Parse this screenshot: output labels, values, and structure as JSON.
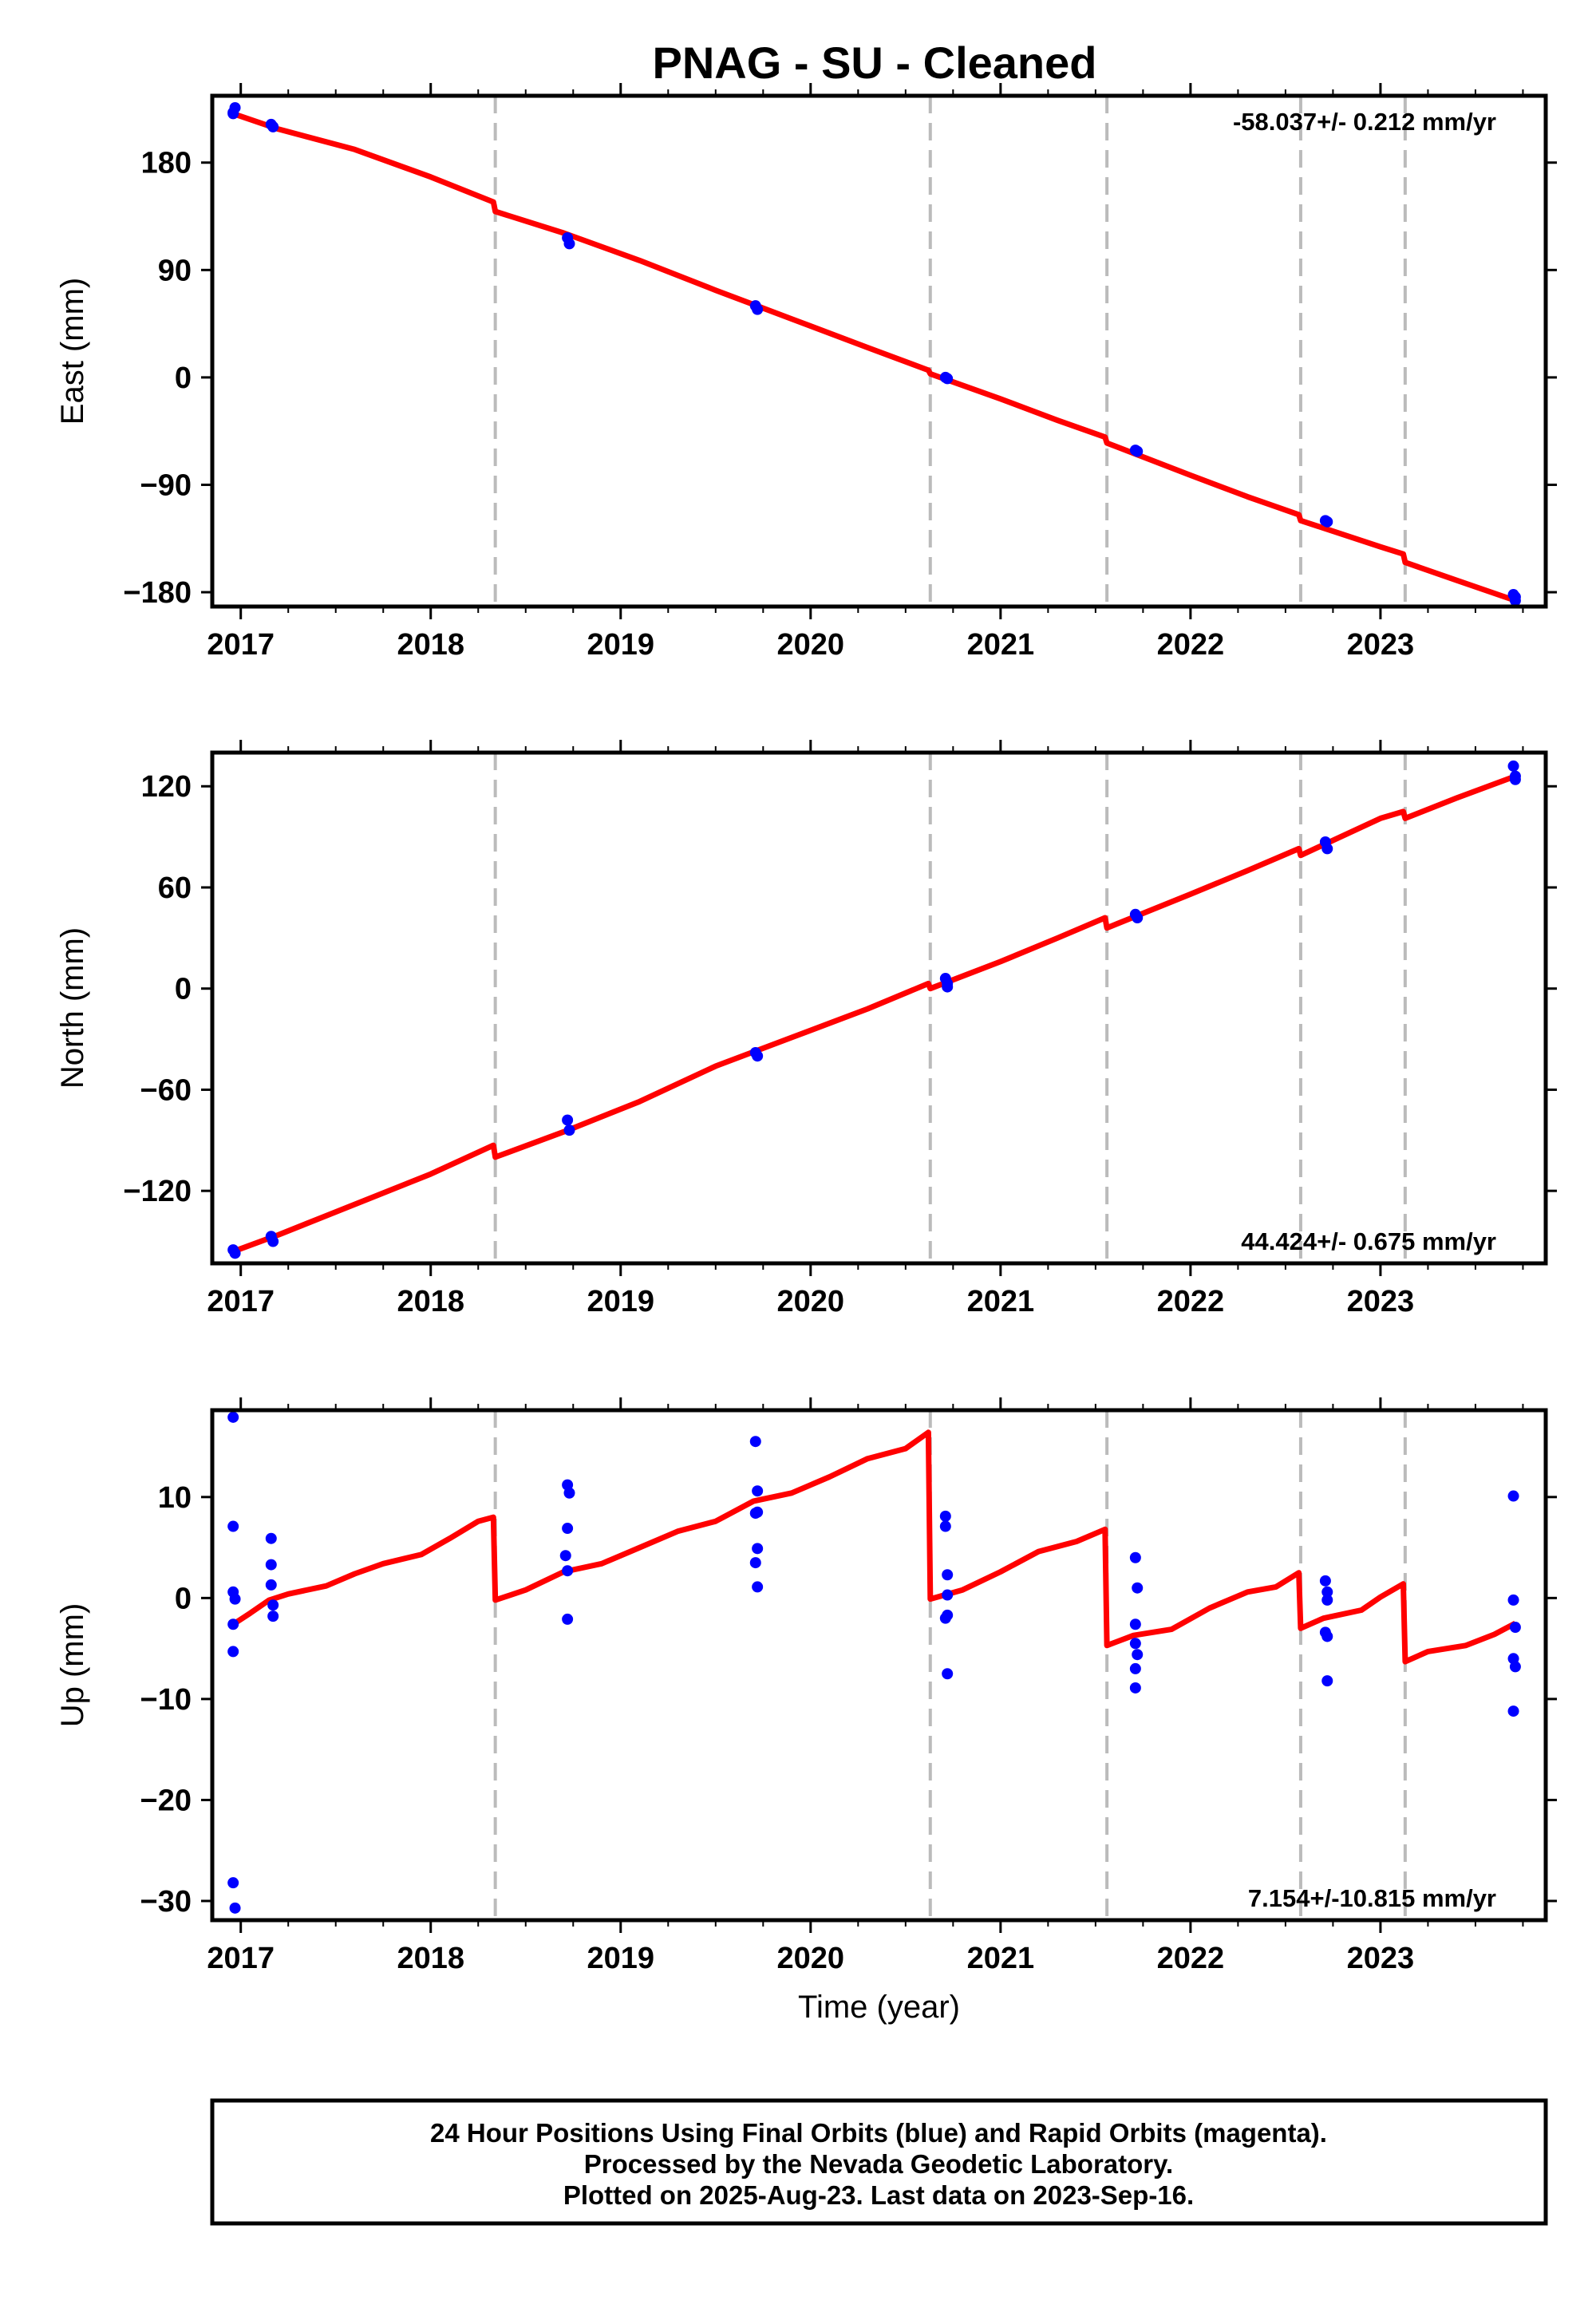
{
  "title": "PNAG  - SU - Cleaned",
  "footer": {
    "line1": "24 Hour Positions Using Final Orbits (blue) and Rapid Orbits (magenta).",
    "line2": "Processed by the Nevada Geodetic Laboratory.",
    "line3": "Plotted on 2025-Aug-23. Last data on 2023-Sep-16."
  },
  "colors": {
    "points": "#0000ff",
    "model": "#ff0000",
    "steps": "#bbbbbb",
    "frame": "#000000"
  },
  "chart_data": [
    {
      "type": "scatter",
      "ylabel": "East (mm)",
      "xlabel": "",
      "rate_text": "-58.037+/- 0.212 mm/yr",
      "xlim": [
        2016.85,
        2023.87
      ],
      "ylim": [
        -192,
        236
      ],
      "x_ticks": [
        2017,
        2018,
        2019,
        2020,
        2021,
        2022,
        2023
      ],
      "y_ticks": [
        180,
        90,
        0,
        -90,
        -180
      ],
      "y_tick_labels": [
        "180",
        "90",
        "0",
        "−90",
        "−180"
      ],
      "step_epochs": [
        2018.34,
        2020.63,
        2021.56,
        2022.58,
        2023.13
      ],
      "series": [
        {
          "kind": "points",
          "points": [
            [
              2016.96,
              222
            ],
            [
              2016.97,
              226
            ],
            [
              2016.96,
              221
            ],
            [
              2017.16,
              212
            ],
            [
              2017.17,
              210
            ],
            [
              2018.72,
              117
            ],
            [
              2018.73,
              112
            ],
            [
              2019.71,
              60
            ],
            [
              2019.72,
              57
            ],
            [
              2020.71,
              0
            ],
            [
              2020.72,
              -1
            ],
            [
              2021.71,
              -61
            ],
            [
              2021.72,
              -62
            ],
            [
              2022.71,
              -120
            ],
            [
              2022.72,
              -121
            ],
            [
              2023.7,
              -182
            ],
            [
              2023.71,
              -187
            ],
            [
              2023.71,
              -184
            ]
          ]
        },
        {
          "kind": "line",
          "points": [
            [
              2016.96,
              221
            ],
            [
              2017.2,
              208
            ],
            [
              2017.6,
              191
            ],
            [
              2018.0,
              168
            ],
            [
              2018.33,
              147
            ],
            [
              2018.34,
              139
            ],
            [
              2018.7,
              121
            ],
            [
              2019.1,
              98
            ],
            [
              2019.5,
              73
            ],
            [
              2019.9,
              49
            ],
            [
              2020.3,
              25
            ],
            [
              2020.62,
              6
            ],
            [
              2020.63,
              3
            ],
            [
              2021.0,
              -18
            ],
            [
              2021.3,
              -36
            ],
            [
              2021.55,
              -50
            ],
            [
              2021.56,
              -55
            ],
            [
              2022.0,
              -82
            ],
            [
              2022.3,
              -100
            ],
            [
              2022.57,
              -115
            ],
            [
              2022.58,
              -120
            ],
            [
              2023.0,
              -142
            ],
            [
              2023.12,
              -148
            ],
            [
              2023.13,
              -155
            ],
            [
              2023.4,
              -170
            ],
            [
              2023.71,
              -187
            ]
          ]
        }
      ]
    },
    {
      "type": "scatter",
      "ylabel": "North (mm)",
      "xlabel": "",
      "rate_text": "44.424+/- 0.675 mm/yr",
      "xlim": [
        2016.85,
        2023.87
      ],
      "ylim": [
        -163,
        140
      ],
      "x_ticks": [
        2017,
        2018,
        2019,
        2020,
        2021,
        2022,
        2023
      ],
      "y_ticks": [
        120,
        60,
        0,
        -60,
        -120
      ],
      "y_tick_labels": [
        "120",
        "60",
        "0",
        "−60",
        "−120"
      ],
      "step_epochs": [
        2018.34,
        2020.63,
        2021.56,
        2022.58,
        2023.13
      ],
      "series": [
        {
          "kind": "points",
          "points": [
            [
              2016.96,
              -155
            ],
            [
              2016.97,
              -157
            ],
            [
              2017.16,
              -147
            ],
            [
              2017.17,
              -150
            ],
            [
              2018.72,
              -78
            ],
            [
              2018.73,
              -84
            ],
            [
              2019.71,
              -38
            ],
            [
              2019.72,
              -40
            ],
            [
              2020.71,
              6
            ],
            [
              2020.72,
              3
            ],
            [
              2020.72,
              1
            ],
            [
              2021.71,
              44
            ],
            [
              2021.72,
              42
            ],
            [
              2022.71,
              87
            ],
            [
              2022.72,
              83
            ],
            [
              2023.7,
              132
            ],
            [
              2023.71,
              126
            ],
            [
              2023.71,
              124
            ]
          ]
        },
        {
          "kind": "line",
          "points": [
            [
              2016.96,
              -156
            ],
            [
              2017.2,
              -146
            ],
            [
              2017.6,
              -128
            ],
            [
              2018.0,
              -110
            ],
            [
              2018.33,
              -93
            ],
            [
              2018.34,
              -100
            ],
            [
              2018.7,
              -85
            ],
            [
              2019.1,
              -67
            ],
            [
              2019.5,
              -46
            ],
            [
              2019.9,
              -29
            ],
            [
              2020.3,
              -12
            ],
            [
              2020.62,
              3
            ],
            [
              2020.63,
              0
            ],
            [
              2021.0,
              16
            ],
            [
              2021.3,
              30
            ],
            [
              2021.55,
              42
            ],
            [
              2021.56,
              36
            ],
            [
              2022.0,
              56
            ],
            [
              2022.3,
              70
            ],
            [
              2022.57,
              83
            ],
            [
              2022.58,
              79
            ],
            [
              2023.0,
              101
            ],
            [
              2023.12,
              105
            ],
            [
              2023.13,
              101
            ],
            [
              2023.4,
              113
            ],
            [
              2023.71,
              126
            ]
          ]
        }
      ]
    },
    {
      "type": "scatter",
      "ylabel": "Up (mm)",
      "xlabel": "Time (year)",
      "rate_text": "7.154+/-10.815 mm/yr",
      "xlim": [
        2016.85,
        2023.87
      ],
      "ylim": [
        -31.9,
        18.6
      ],
      "x_ticks": [
        2017,
        2018,
        2019,
        2020,
        2021,
        2022,
        2023
      ],
      "y_ticks": [
        10,
        0,
        -10,
        -20,
        -30
      ],
      "y_tick_labels": [
        "10",
        "0",
        "−10",
        "−20",
        "−30"
      ],
      "step_epochs": [
        2018.34,
        2020.63,
        2021.56,
        2022.58,
        2023.13
      ],
      "series": [
        {
          "kind": "points",
          "points": [
            [
              2016.96,
              17.9
            ],
            [
              2016.96,
              7.1
            ],
            [
              2016.96,
              0.6
            ],
            [
              2016.97,
              -0.1
            ],
            [
              2016.96,
              -2.6
            ],
            [
              2016.96,
              -5.3
            ],
            [
              2016.96,
              -28.2
            ],
            [
              2016.97,
              -30.7
            ],
            [
              2017.16,
              5.9
            ],
            [
              2017.16,
              3.3
            ],
            [
              2017.16,
              1.3
            ],
            [
              2017.17,
              -0.7
            ],
            [
              2017.17,
              -1.8
            ],
            [
              2018.72,
              11.2
            ],
            [
              2018.73,
              10.4
            ],
            [
              2018.72,
              6.9
            ],
            [
              2018.71,
              4.2
            ],
            [
              2018.72,
              2.7
            ],
            [
              2018.72,
              -2.1
            ],
            [
              2019.71,
              15.5
            ],
            [
              2019.72,
              10.6
            ],
            [
              2019.71,
              8.4
            ],
            [
              2019.72,
              8.5
            ],
            [
              2019.72,
              4.9
            ],
            [
              2019.71,
              3.5
            ],
            [
              2019.72,
              1.1
            ],
            [
              2020.71,
              8.1
            ],
            [
              2020.71,
              7.1
            ],
            [
              2020.72,
              2.3
            ],
            [
              2020.72,
              0.3
            ],
            [
              2020.72,
              -1.7
            ],
            [
              2020.71,
              -2.0
            ],
            [
              2020.72,
              -7.5
            ],
            [
              2021.71,
              4.0
            ],
            [
              2021.72,
              1.0
            ],
            [
              2021.71,
              -2.6
            ],
            [
              2021.71,
              -4.5
            ],
            [
              2021.72,
              -5.6
            ],
            [
              2021.71,
              -7.0
            ],
            [
              2021.71,
              -8.9
            ],
            [
              2022.71,
              1.7
            ],
            [
              2022.72,
              0.6
            ],
            [
              2022.72,
              -0.2
            ],
            [
              2022.71,
              -3.4
            ],
            [
              2022.72,
              -3.8
            ],
            [
              2022.72,
              -8.2
            ],
            [
              2023.7,
              10.1
            ],
            [
              2023.7,
              -0.2
            ],
            [
              2023.71,
              -2.9
            ],
            [
              2023.7,
              -6.0
            ],
            [
              2023.71,
              -6.8
            ],
            [
              2023.7,
              -11.2
            ]
          ]
        },
        {
          "kind": "line",
          "points": [
            [
              2016.96,
              -2.6
            ],
            [
              2017.05,
              -1.5
            ],
            [
              2017.15,
              -0.2
            ],
            [
              2017.25,
              0.4
            ],
            [
              2017.45,
              1.2
            ],
            [
              2017.6,
              2.4
            ],
            [
              2017.75,
              3.4
            ],
            [
              2017.95,
              4.3
            ],
            [
              2018.1,
              5.9
            ],
            [
              2018.25,
              7.6
            ],
            [
              2018.33,
              8.0
            ],
            [
              2018.34,
              -0.2
            ],
            [
              2018.5,
              0.8
            ],
            [
              2018.7,
              2.6
            ],
            [
              2018.9,
              3.4
            ],
            [
              2019.1,
              5.0
            ],
            [
              2019.3,
              6.6
            ],
            [
              2019.5,
              7.6
            ],
            [
              2019.7,
              9.6
            ],
            [
              2019.9,
              10.4
            ],
            [
              2020.1,
              12.0
            ],
            [
              2020.3,
              13.8
            ],
            [
              2020.5,
              14.8
            ],
            [
              2020.62,
              16.4
            ],
            [
              2020.63,
              -0.1
            ],
            [
              2020.8,
              0.8
            ],
            [
              2021.0,
              2.6
            ],
            [
              2021.2,
              4.6
            ],
            [
              2021.4,
              5.6
            ],
            [
              2021.55,
              6.8
            ],
            [
              2021.56,
              -4.7
            ],
            [
              2021.7,
              -3.7
            ],
            [
              2021.9,
              -3.1
            ],
            [
              2022.1,
              -1.0
            ],
            [
              2022.3,
              0.6
            ],
            [
              2022.45,
              1.1
            ],
            [
              2022.57,
              2.5
            ],
            [
              2022.58,
              -3.0
            ],
            [
              2022.7,
              -2.0
            ],
            [
              2022.9,
              -1.2
            ],
            [
              2023.0,
              0.1
            ],
            [
              2023.12,
              1.4
            ],
            [
              2023.13,
              -6.3
            ],
            [
              2023.25,
              -5.3
            ],
            [
              2023.45,
              -4.7
            ],
            [
              2023.6,
              -3.6
            ],
            [
              2023.71,
              -2.5
            ]
          ]
        }
      ]
    }
  ]
}
